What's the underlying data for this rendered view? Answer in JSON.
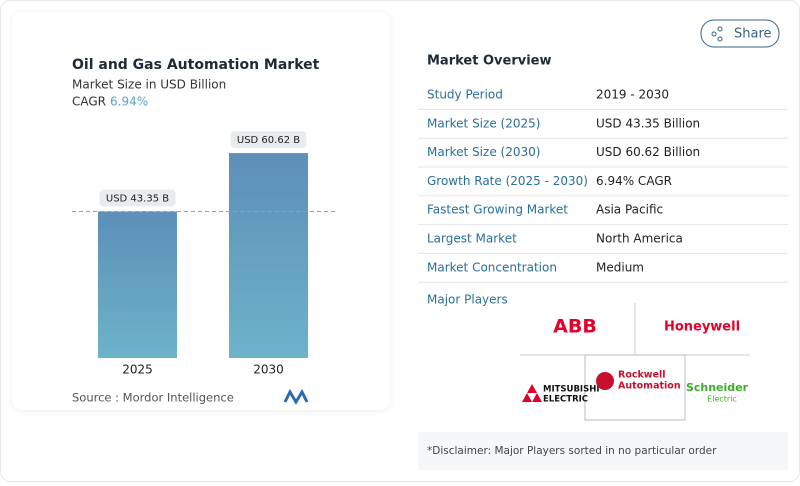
{
  "chart_data": {
    "type": "bar",
    "title": "Oil and Gas Automation Market",
    "subtitle": "Market Size in USD Billion",
    "cagr_label": "CAGR",
    "cagr_value": "6.94%",
    "categories": [
      "2025",
      "2030"
    ],
    "values": [
      43.35,
      60.62
    ],
    "value_labels": [
      "USD 43.35 B",
      "USD 60.62 B"
    ],
    "source": "Source :  Mordor Intelligence"
  },
  "share": "Share",
  "overview": {
    "title": "Market Overview",
    "rows": [
      [
        "Study Period",
        "2019 - 2030"
      ],
      [
        "Market Size (2025)",
        "USD 43.35 Billion"
      ],
      [
        "Market Size (2030)",
        "USD 60.62 Billion"
      ],
      [
        "Growth Rate (2025 - 2030)",
        "6.94% CAGR"
      ],
      [
        "Fastest Growing Market",
        "Asia Pacific"
      ],
      [
        "Largest Market",
        "North America"
      ],
      [
        "Market Concentration",
        "Medium"
      ]
    ]
  },
  "major_players": {
    "title": "Major Players",
    "logos": [
      "ABB",
      "Honeywell",
      "MITSUBISHI",
      "ELECTRIC",
      "Rockwell",
      "Automation",
      "Schneider",
      "Electric"
    ]
  },
  "disclaimer": "*Disclaimer: Major Players sorted in no particular order"
}
